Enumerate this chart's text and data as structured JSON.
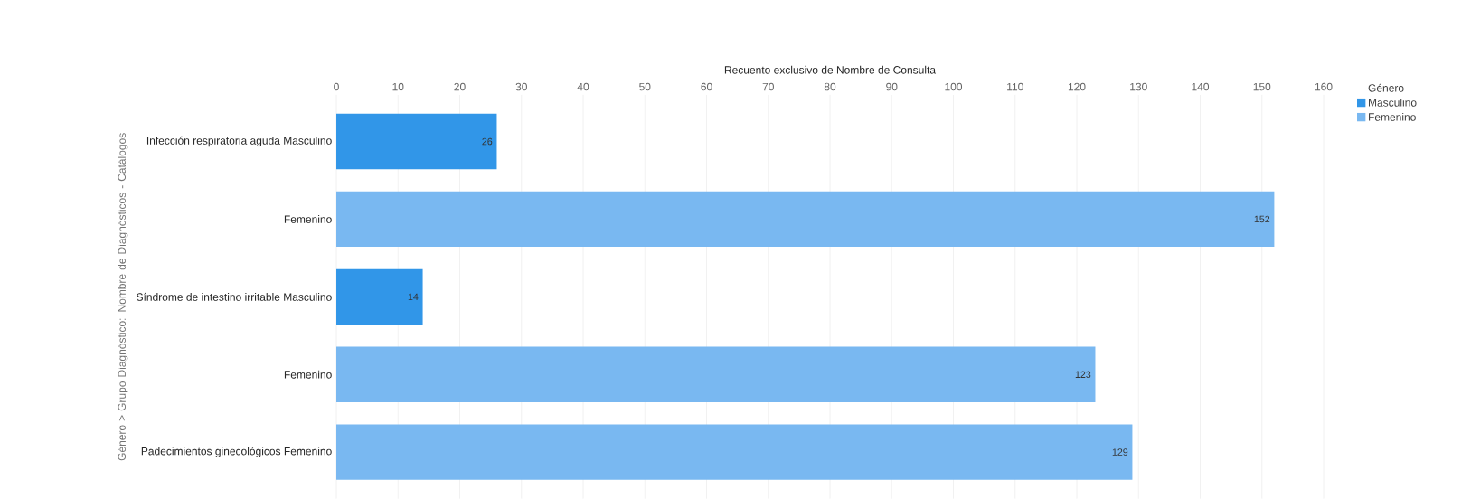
{
  "chart_data": {
    "type": "bar",
    "orientation": "horizontal",
    "xlabel": "Recuento exclusivo de Nombre de Consulta",
    "ylabel": "Género > Grupo Diagnóstico: Nombre de Diagnósticos - Catálogos",
    "legend_title": "Género",
    "categories": [
      "Infección respiratoria aguda Masculino",
      "Femenino",
      "Síndrome de intestino irritable Masculino",
      "Femenino",
      "Padecimientos ginecológicos Femenino"
    ],
    "series": [
      {
        "name": "Masculino",
        "color": "#3196e8",
        "values": [
          26,
          null,
          14,
          null,
          null
        ]
      },
      {
        "name": "Femenino",
        "color": "#79b8f1",
        "values": [
          null,
          152,
          null,
          123,
          129
        ]
      }
    ],
    "xlim": [
      0,
      160
    ],
    "xticks": [
      0,
      10,
      20,
      30,
      40,
      50,
      60,
      70,
      80,
      90,
      100,
      110,
      120,
      130,
      140,
      150,
      160
    ],
    "grid": "x",
    "legend": "top right",
    "data_labels": true
  }
}
